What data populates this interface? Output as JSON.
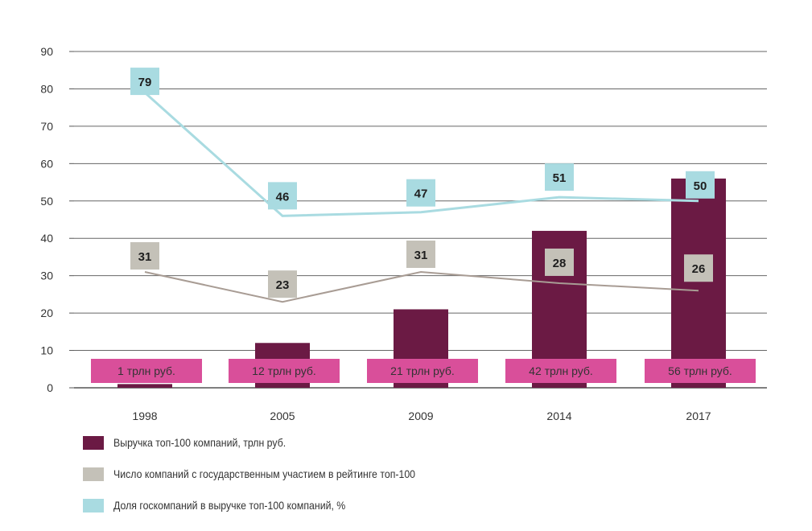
{
  "chart_data": {
    "type": "bar+line",
    "categories": [
      "1998",
      "2005",
      "2009",
      "2014",
      "2017"
    ],
    "ylim": [
      0,
      90
    ],
    "yticks": [
      0,
      10,
      20,
      30,
      40,
      50,
      60,
      70,
      80,
      90
    ],
    "grid": true,
    "series": [
      {
        "name": "Выручка топ-100 компаний, трлн руб.",
        "kind": "bar",
        "color": "#6b1a44",
        "values": [
          1,
          12,
          21,
          42,
          56
        ],
        "labels": [
          "1 трлн руб.",
          "12 трлн руб.",
          "21 трлн руб.",
          "42 трлн руб.",
          "56 трлн руб."
        ],
        "label_color": "#d94f9a"
      },
      {
        "name": "Число компаний с государственным участием в рейтинге топ-100",
        "kind": "line",
        "color": "#a89c94",
        "label_color": "#c4c1b8",
        "values": [
          31,
          23,
          31,
          28,
          26
        ]
      },
      {
        "name": "Доля госкомпаний в выручке топ-100 компаний, %",
        "kind": "line",
        "color": "#a9dbe1",
        "label_color": "#a9dbe1",
        "values": [
          79,
          46,
          47,
          51,
          50
        ]
      }
    ],
    "legend_position": "bottom-left"
  }
}
